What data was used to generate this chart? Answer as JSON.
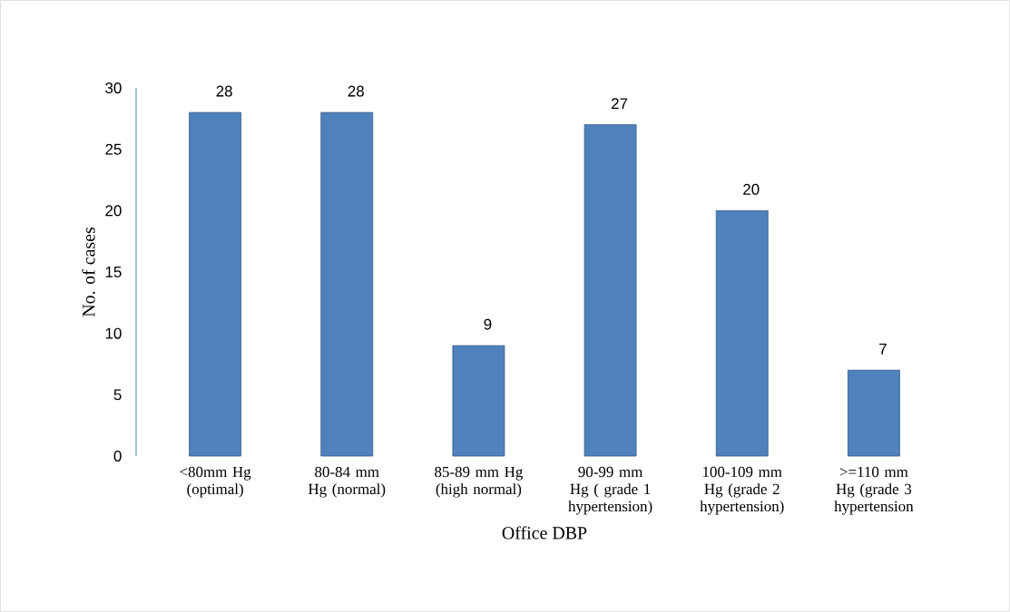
{
  "chart_data": {
    "type": "bar",
    "categories": [
      "<80mm Hg (optimal)",
      "80-84 mm Hg (normal)",
      "85-89 mm Hg (high normal)",
      "90-99 mm Hg ( grade 1 hypertension)",
      "100-109 mm Hg (grade 2 hypertension)",
      ">=110 mm Hg (grade 3 hypertension"
    ],
    "values": [
      28,
      28,
      9,
      27,
      20,
      7
    ],
    "color": "#4f81bd",
    "xlabel": "Office DBP",
    "ylabel": "No. of cases",
    "ylim": [
      0,
      30
    ],
    "yticks": [
      0,
      5,
      10,
      15,
      20,
      25,
      30
    ],
    "data_labels": true,
    "grid": false
  }
}
